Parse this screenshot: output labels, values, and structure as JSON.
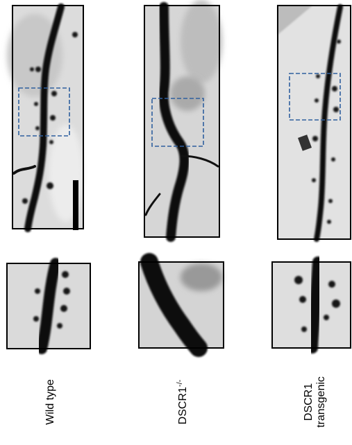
{
  "panels": [
    {
      "label": "Wild type"
    },
    {
      "label": "DSCR1",
      "label_superscript": "-/-"
    },
    {
      "label_lines": [
        "DSCR1",
        "transgenic"
      ]
    }
  ]
}
